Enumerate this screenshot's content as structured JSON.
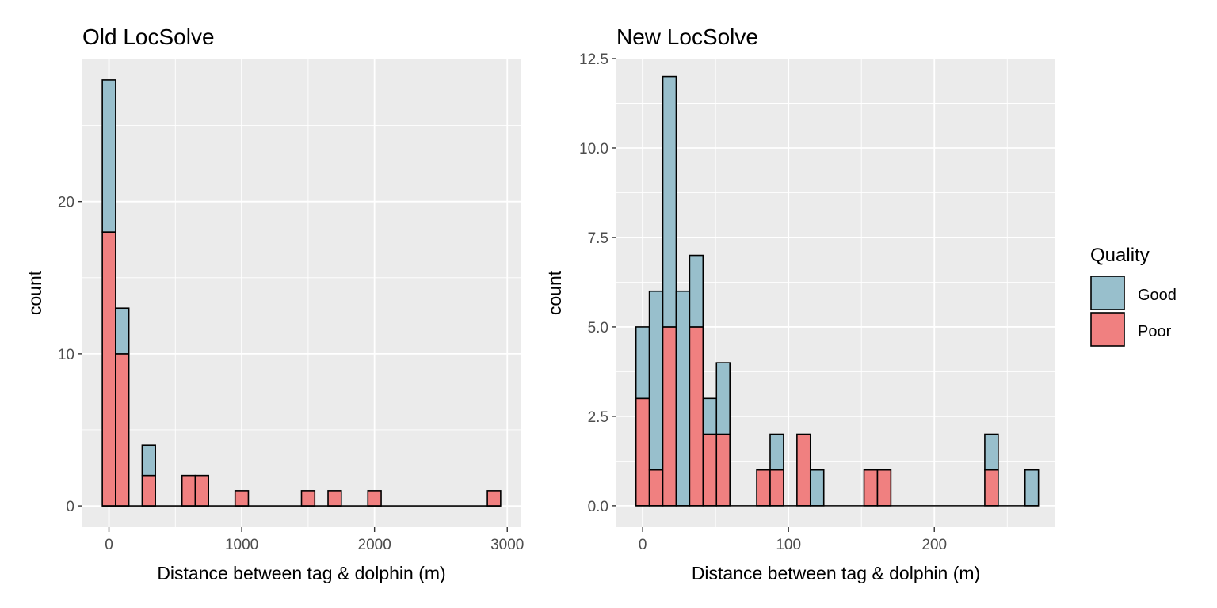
{
  "colors": {
    "Good": "#98bfcc",
    "Poor": "#f08080",
    "panel": "#ebebeb",
    "grid": "#ffffff",
    "outline": "#000000"
  },
  "legend": {
    "title": "Quality",
    "placement": "right",
    "items": [
      {
        "label": "Good",
        "color": "#98bfcc"
      },
      {
        "label": "Poor",
        "color": "#f08080"
      }
    ]
  },
  "chart_data": [
    {
      "type": "bar",
      "subtype": "stacked-histogram",
      "title": "Old LocSolve",
      "xlabel": "Distance between tag & dolphin (m)",
      "ylabel": "count",
      "xlim": [
        -200,
        3100
      ],
      "ylim": [
        -1.4,
        29.4
      ],
      "xticks": [
        0,
        1000,
        2000,
        3000
      ],
      "yticks": [
        0,
        10,
        20
      ],
      "xticklabels": [
        "0",
        "1000",
        "2000",
        "3000"
      ],
      "yticklabels": [
        "0",
        "10",
        "20"
      ],
      "grid": true,
      "bin_width": 100,
      "bins": [
        {
          "x": 0,
          "Poor": 18,
          "Good": 10
        },
        {
          "x": 100,
          "Poor": 10,
          "Good": 3
        },
        {
          "x": 300,
          "Poor": 2,
          "Good": 2
        },
        {
          "x": 600,
          "Poor": 2,
          "Good": 0
        },
        {
          "x": 700,
          "Poor": 2,
          "Good": 0
        },
        {
          "x": 1000,
          "Poor": 1,
          "Good": 0
        },
        {
          "x": 1500,
          "Poor": 1,
          "Good": 0
        },
        {
          "x": 1700,
          "Poor": 1,
          "Good": 0
        },
        {
          "x": 2000,
          "Poor": 1,
          "Good": 0
        },
        {
          "x": 2900,
          "Poor": 1,
          "Good": 0
        }
      ]
    },
    {
      "type": "bar",
      "subtype": "stacked-histogram",
      "title": "New LocSolve",
      "xlabel": "Distance between tag & dolphin (m)",
      "ylabel": "count",
      "xlim": [
        -18,
        283
      ],
      "ylim": [
        -0.6,
        12.5
      ],
      "xticks": [
        0,
        100,
        200
      ],
      "yticks": [
        0,
        2.5,
        5,
        7.5,
        10,
        12.5
      ],
      "xticklabels": [
        "0",
        "100",
        "200"
      ],
      "yticklabels": [
        "0.0",
        "2.5",
        "5.0",
        "7.5",
        "10.0",
        "12.5"
      ],
      "grid": true,
      "bin_width": 9.2,
      "bins": [
        {
          "x": 0,
          "Poor": 3,
          "Good": 2
        },
        {
          "x": 9.2,
          "Poor": 1,
          "Good": 5
        },
        {
          "x": 18.4,
          "Poor": 5,
          "Good": 7
        },
        {
          "x": 27.6,
          "Poor": 0,
          "Good": 6
        },
        {
          "x": 36.8,
          "Poor": 5,
          "Good": 2
        },
        {
          "x": 46.0,
          "Poor": 2,
          "Good": 1
        },
        {
          "x": 55.2,
          "Poor": 2,
          "Good": 2
        },
        {
          "x": 82.8,
          "Poor": 1,
          "Good": 0
        },
        {
          "x": 92.0,
          "Poor": 1,
          "Good": 1
        },
        {
          "x": 110.4,
          "Poor": 2,
          "Good": 0
        },
        {
          "x": 119.6,
          "Poor": 0,
          "Good": 1
        },
        {
          "x": 156.4,
          "Poor": 1,
          "Good": 0
        },
        {
          "x": 165.6,
          "Poor": 1,
          "Good": 0
        },
        {
          "x": 239.2,
          "Poor": 1,
          "Good": 1
        },
        {
          "x": 266.8,
          "Poor": 0,
          "Good": 1
        }
      ]
    }
  ]
}
